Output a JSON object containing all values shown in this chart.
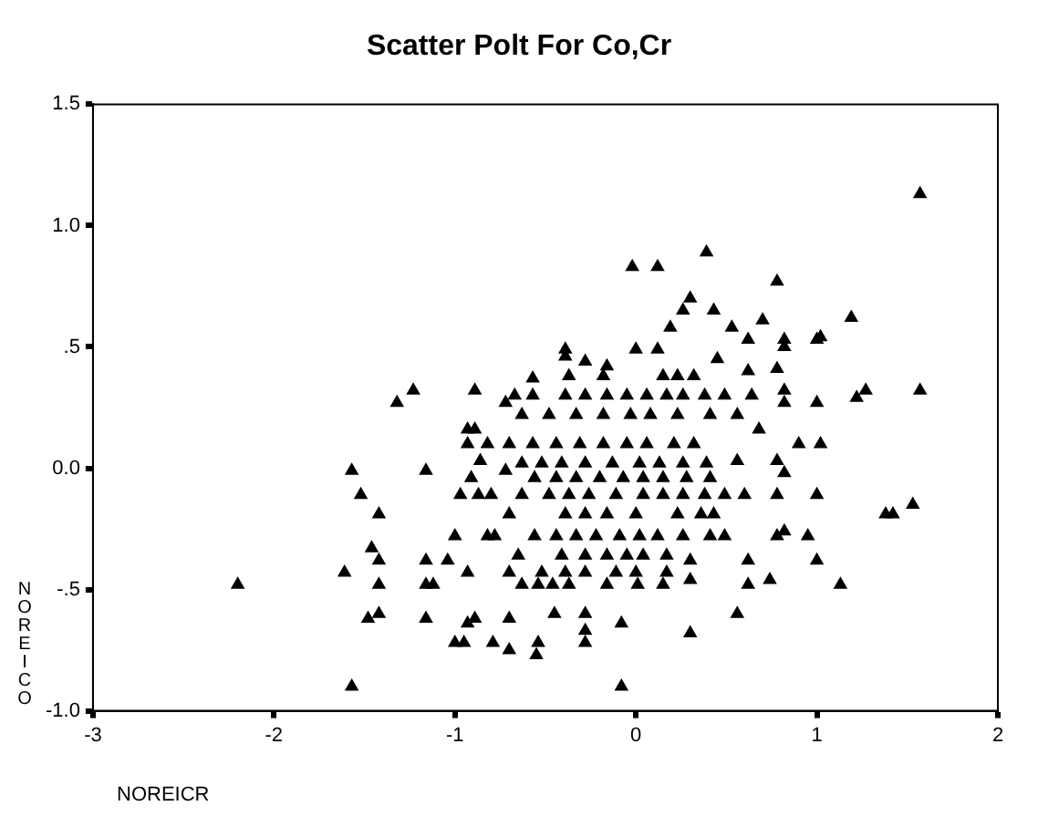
{
  "chart_data": {
    "type": "scatter",
    "title": "Scatter Polt For Co,Cr",
    "xlabel": "NOREICR",
    "ylabel": "NOREICO",
    "color": "#000000",
    "marker": "triangle",
    "grid": false,
    "legend": false,
    "xlim": [
      -3,
      2
    ],
    "xticks": [
      -3,
      -2,
      -1,
      0,
      1,
      2
    ],
    "ylim": [
      -1,
      1.5
    ],
    "yticks": [
      {
        "value": -1,
        "label": "-1.0"
      },
      {
        "value": -0.5,
        "label": "-.5"
      },
      {
        "value": 0,
        "label": "0.0"
      },
      {
        "value": 0.5,
        "label": ".5"
      },
      {
        "value": 1,
        "label": "1.0"
      },
      {
        "value": 1.5,
        "label": "1.5"
      }
    ],
    "x": [
      -2.2,
      -1.57,
      -0.08,
      1.57,
      1.57,
      1.53,
      1.38,
      1.42,
      1.13,
      1.27,
      1.22,
      1.19,
      1.02,
      0.9,
      1.0,
      1.02,
      1.0,
      1.0,
      0.95,
      1.0,
      0.74,
      0.56,
      0.3,
      0.78,
      0.39,
      -0.02,
      0.12,
      0.3,
      0.43,
      0.7,
      0.82,
      0.82,
      0.78,
      0.82,
      0.82,
      0.68,
      0.56,
      0.78,
      0.82,
      0.78,
      0.82,
      0.78,
      0.62,
      0.62,
      0.3,
      0.3,
      0.15,
      0.01,
      -0.08,
      -0.28,
      -0.28,
      -0.28,
      -0.45,
      -0.54,
      -0.55,
      -0.7,
      -0.7,
      -0.79,
      -1.0,
      -0.95,
      -0.93,
      -0.89,
      -1.16,
      -1.48,
      -1.42,
      -1.42,
      -1.61,
      -1.46,
      -1.42,
      -1.42,
      -1.52,
      -1.57,
      -1.16,
      -1.16,
      -1.12,
      -1.16,
      -1.04,
      -1.0,
      -0.93,
      -1.32,
      -1.23,
      -0.89,
      -0.93,
      -0.89,
      -0.93,
      -0.86,
      -0.91,
      -0.97,
      -0.82,
      -0.78,
      -0.7,
      -0.72,
      -0.72,
      -0.57,
      -0.39,
      -0.39,
      -0.28,
      -0.16,
      0.0,
      0.12,
      0.19,
      0.26,
      0.62,
      0.53,
      0.45,
      0.62,
      -0.67,
      -0.57,
      -0.39,
      -0.28,
      -0.16,
      -0.05,
      0.06,
      0.17,
      0.26,
      0.38,
      0.49,
      0.64,
      -0.63,
      -0.48,
      -0.33,
      -0.18,
      -0.03,
      0.08,
      0.23,
      0.41,
      0.56,
      -0.82,
      -0.7,
      -0.57,
      -0.44,
      -0.31,
      -0.18,
      -0.05,
      0.06,
      0.21,
      0.32,
      -0.63,
      -0.52,
      -0.41,
      -0.28,
      -0.13,
      0.02,
      0.13,
      0.26,
      0.39,
      -0.56,
      -0.44,
      -0.33,
      -0.2,
      -0.07,
      0.04,
      0.15,
      0.28,
      0.41,
      -0.87,
      -0.8,
      -0.63,
      -0.48,
      -0.37,
      -0.26,
      -0.11,
      0.04,
      0.15,
      0.26,
      0.38,
      0.49,
      0.6,
      -0.39,
      -0.28,
      -0.16,
      0.0,
      0.23,
      0.36,
      0.43,
      -0.56,
      -0.44,
      -0.33,
      -0.22,
      -0.09,
      0.02,
      0.12,
      0.26,
      0.41,
      0.49,
      -0.65,
      -0.41,
      -0.28,
      -0.16,
      -0.05,
      0.04,
      0.17,
      -0.7,
      -0.52,
      -0.39,
      -0.28,
      -0.11,
      0.0,
      0.17,
      -0.63,
      -0.54,
      -0.46,
      -0.37,
      -0.16,
      -0.37,
      -0.18,
      0.15,
      0.23,
      0.32
    ],
    "values": [
      -0.48,
      -0.9,
      -0.9,
      1.13,
      0.32,
      -0.15,
      -0.19,
      -0.19,
      -0.48,
      0.32,
      0.29,
      0.62,
      0.1,
      0.1,
      0.53,
      0.54,
      0.27,
      -0.11,
      -0.28,
      -0.38,
      -0.46,
      -0.6,
      -0.68,
      0.77,
      0.89,
      0.83,
      0.83,
      0.7,
      0.65,
      0.61,
      0.53,
      0.5,
      0.41,
      0.32,
      0.27,
      0.16,
      0.03,
      0.03,
      -0.02,
      -0.11,
      -0.26,
      -0.28,
      -0.38,
      -0.48,
      -0.38,
      -0.46,
      -0.48,
      -0.48,
      -0.64,
      -0.6,
      -0.67,
      -0.72,
      -0.6,
      -0.72,
      -0.77,
      -0.75,
      -0.62,
      -0.72,
      -0.72,
      -0.72,
      -0.64,
      -0.62,
      -0.62,
      -0.62,
      -0.6,
      -0.48,
      -0.43,
      -0.33,
      -0.38,
      -0.19,
      -0.11,
      -0.01,
      -0.01,
      -0.48,
      -0.48,
      -0.38,
      -0.38,
      -0.28,
      -0.43,
      0.27,
      0.32,
      0.32,
      0.16,
      0.16,
      0.1,
      0.03,
      -0.04,
      -0.11,
      -0.28,
      -0.28,
      -0.19,
      -0.01,
      0.27,
      0.37,
      0.49,
      0.46,
      0.44,
      0.42,
      0.49,
      0.49,
      0.58,
      0.65,
      0.53,
      0.58,
      0.45,
      0.4,
      0.3,
      0.3,
      0.3,
      0.3,
      0.3,
      0.3,
      0.3,
      0.3,
      0.3,
      0.3,
      0.3,
      0.3,
      0.22,
      0.22,
      0.22,
      0.22,
      0.22,
      0.22,
      0.22,
      0.22,
      0.22,
      0.1,
      0.1,
      0.1,
      0.1,
      0.1,
      0.1,
      0.1,
      0.1,
      0.1,
      0.1,
      0.02,
      0.02,
      0.02,
      0.02,
      0.02,
      0.02,
      0.02,
      0.02,
      0.02,
      -0.04,
      -0.04,
      -0.04,
      -0.04,
      -0.04,
      -0.04,
      -0.04,
      -0.04,
      -0.04,
      -0.11,
      -0.11,
      -0.11,
      -0.11,
      -0.11,
      -0.11,
      -0.11,
      -0.11,
      -0.11,
      -0.11,
      -0.11,
      -0.11,
      -0.11,
      -0.19,
      -0.19,
      -0.19,
      -0.19,
      -0.19,
      -0.19,
      -0.19,
      -0.28,
      -0.28,
      -0.28,
      -0.28,
      -0.28,
      -0.28,
      -0.28,
      -0.28,
      -0.28,
      -0.28,
      -0.36,
      -0.36,
      -0.36,
      -0.36,
      -0.36,
      -0.36,
      -0.36,
      -0.43,
      -0.43,
      -0.43,
      -0.43,
      -0.43,
      -0.43,
      -0.43,
      -0.48,
      -0.48,
      -0.48,
      -0.48,
      -0.48,
      0.38,
      0.38,
      0.38,
      0.38,
      0.38
    ]
  }
}
